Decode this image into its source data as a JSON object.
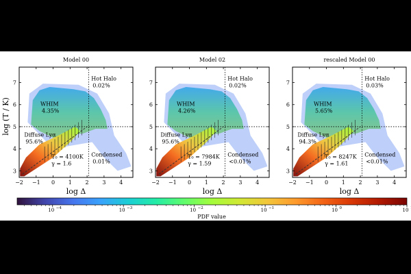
{
  "figure": {
    "ylabel": "log (T / K)",
    "xlabel": "log Δ",
    "colorbar_label": "PDF value",
    "colorbar_ticks": [
      "10",
      "10",
      "10",
      "10",
      "10",
      "10"
    ],
    "colorbar_exponents": [
      "−4",
      "−3",
      "−2",
      "−1",
      "0",
      "1"
    ],
    "colormap": [
      "#30123b",
      "#4145ab",
      "#4675ed",
      "#39a2fc",
      "#1bcfd4",
      "#24eca6",
      "#61fc6c",
      "#a4fc3b",
      "#d1e834",
      "#f3c63a",
      "#fe9b2d",
      "#f36315",
      "#d93806",
      "#b11901",
      "#7a0402"
    ]
  },
  "chart_data": [
    {
      "type": "heatmap",
      "title": "Model 00",
      "xlabel": "log Δ",
      "ylabel": "log (T / K)",
      "xlim": [
        -2,
        4.7
      ],
      "ylim": [
        2.7,
        7.7
      ],
      "xticks": [
        "−2",
        "−1",
        "0",
        "1",
        "2",
        "3",
        "4"
      ],
      "yticks": [
        "3",
        "4",
        "5",
        "6",
        "7"
      ],
      "threshold_x": 2.1,
      "threshold_y": 5,
      "regions": [
        {
          "name": "Hot Halo",
          "fraction": "0.02%"
        },
        {
          "name": "WHIM",
          "fraction": "4.35%"
        },
        {
          "name": "Diffuse Lyα",
          "fraction": "95.6%"
        },
        {
          "name": "Condensed",
          "fraction": "0.01%"
        }
      ],
      "fit": {
        "T0": "T₀ = 4100K",
        "gamma": "γ = 1.6"
      }
    },
    {
      "type": "heatmap",
      "title": "Model 02",
      "xlabel": "log Δ",
      "ylabel": "log (T / K)",
      "xlim": [
        -2,
        4.7
      ],
      "ylim": [
        2.7,
        7.7
      ],
      "xticks": [
        "−2",
        "−1",
        "0",
        "1",
        "2",
        "3",
        "4"
      ],
      "yticks": [
        "3",
        "4",
        "5",
        "6",
        "7"
      ],
      "threshold_x": 2.1,
      "threshold_y": 5,
      "regions": [
        {
          "name": "Hot Halo",
          "fraction": "0.02%"
        },
        {
          "name": "WHIM",
          "fraction": "4.26%"
        },
        {
          "name": "Diffuse Lyα",
          "fraction": "95.6%"
        },
        {
          "name": "Condensed",
          "fraction": "<0.01%"
        }
      ],
      "fit": {
        "T0": "T₀ = 7984K",
        "gamma": "γ = 1.59"
      }
    },
    {
      "type": "heatmap",
      "title": "rescaled Model 00",
      "xlabel": "log Δ",
      "ylabel": "log (T / K)",
      "xlim": [
        -2,
        4.7
      ],
      "ylim": [
        2.7,
        7.7
      ],
      "xticks": [
        "−2",
        "−1",
        "0",
        "1",
        "2",
        "3",
        "4"
      ],
      "yticks": [
        "3",
        "4",
        "5",
        "6",
        "7"
      ],
      "threshold_x": 2.1,
      "threshold_y": 5,
      "regions": [
        {
          "name": "Hot Halo",
          "fraction": "0.03%"
        },
        {
          "name": "WHIM",
          "fraction": "5.65%"
        },
        {
          "name": "Diffuse Lyα",
          "fraction": "94.3%"
        },
        {
          "name": "Condensed",
          "fraction": "<0.01%"
        }
      ],
      "fit": {
        "T0": "T₀ = 8247K",
        "gamma": "γ = 1.61"
      }
    }
  ]
}
